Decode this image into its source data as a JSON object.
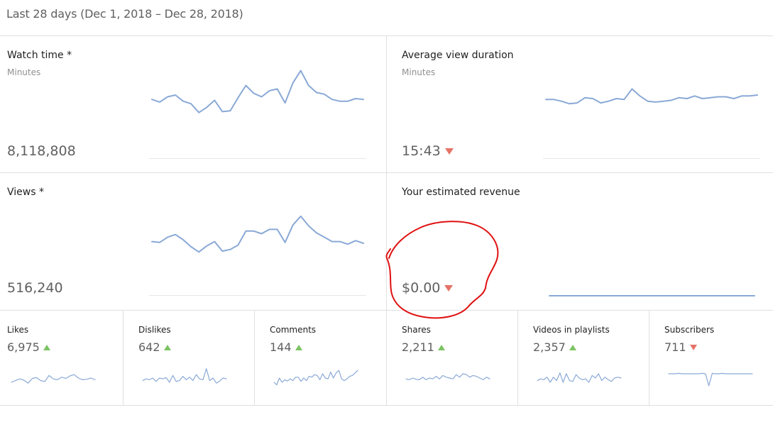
{
  "header": {
    "date_range": "Last 28 days (Dec 1, 2018 – Dec 28, 2018)"
  },
  "colors": {
    "spark_line": "#8aa9d6",
    "trend_up": "#7cc363",
    "trend_down": "#e57368",
    "annotation": "#e01010"
  },
  "cards": {
    "watch_time": {
      "title": "Watch time *",
      "subtitle": "Minutes",
      "value": "8,118,808",
      "trend": "none",
      "series": [
        60,
        57,
        63,
        65,
        58,
        55,
        45,
        51,
        59,
        46,
        47,
        62,
        76,
        67,
        63,
        70,
        72,
        56,
        79,
        93,
        76,
        68,
        66,
        60,
        58,
        58,
        61,
        60
      ]
    },
    "avg_view_duration": {
      "title": "Average view duration",
      "subtitle": "Minutes",
      "value": "15:43",
      "trend": "down",
      "series": [
        60,
        60,
        58,
        55,
        56,
        62,
        61,
        56,
        58,
        61,
        60,
        72,
        64,
        58,
        57,
        58,
        59,
        62,
        61,
        64,
        61,
        62,
        63,
        63,
        61,
        64,
        64,
        65
      ]
    },
    "views": {
      "title": "Views *",
      "value": "516,240",
      "trend": "none",
      "series": [
        54,
        53,
        59,
        62,
        56,
        48,
        42,
        49,
        54,
        43,
        45,
        50,
        66,
        66,
        63,
        68,
        68,
        53,
        73,
        83,
        72,
        64,
        59,
        54,
        54,
        51,
        55,
        52
      ]
    },
    "revenue": {
      "title": "Your estimated revenue",
      "value": "$0.00",
      "trend": "down",
      "series": [
        0,
        0,
        0,
        0,
        0,
        0,
        0,
        0,
        0,
        0,
        0,
        0,
        0,
        0,
        0,
        0,
        0,
        0,
        0,
        0,
        0,
        0,
        0,
        0,
        0,
        0,
        0,
        0
      ]
    }
  },
  "small_cards": [
    {
      "key": "likes",
      "title": "Likes",
      "value": "6,975",
      "trend": "up",
      "series": [
        40,
        44,
        48,
        45,
        38,
        49,
        51,
        44,
        42,
        56,
        48,
        46,
        52,
        49,
        55,
        58,
        50,
        46,
        47,
        50,
        46
      ]
    },
    {
      "key": "dislikes",
      "title": "Dislikes",
      "value": "642",
      "trend": "up",
      "series": [
        44,
        48,
        46,
        50,
        42,
        50,
        48,
        51,
        40,
        56,
        42,
        44,
        54,
        46,
        52,
        44,
        58,
        48,
        46,
        72,
        44,
        50,
        38,
        43,
        50,
        48
      ]
    },
    {
      "key": "comments",
      "title": "Comments",
      "value": "144",
      "trend": "up",
      "series": [
        40,
        34,
        50,
        40,
        46,
        43,
        48,
        44,
        52,
        52,
        42,
        50,
        44,
        54,
        52,
        58,
        56,
        46,
        60,
        50,
        48,
        64,
        50,
        62,
        68,
        48,
        44,
        48,
        54,
        56,
        62,
        68
      ]
    },
    {
      "key": "shares",
      "title": "Shares",
      "value": "2,211",
      "trend": "up",
      "series": [
        48,
        46,
        50,
        47,
        46,
        52,
        46,
        50,
        48,
        54,
        48,
        56,
        52,
        50,
        48,
        58,
        52,
        60,
        58,
        52,
        56,
        54,
        50,
        46,
        52,
        48
      ]
    },
    {
      "key": "videos_in_playlists",
      "title": "Videos in playlists",
      "value": "2,357",
      "trend": "up",
      "series": [
        44,
        48,
        46,
        52,
        40,
        52,
        44,
        62,
        40,
        60,
        44,
        42,
        58,
        50,
        46,
        48,
        40,
        56,
        50,
        60,
        44,
        52,
        46,
        42,
        50,
        52,
        50
      ]
    },
    {
      "key": "subscribers",
      "title": "Subscribers",
      "value": "711",
      "trend": "down",
      "series": [
        60,
        60,
        60,
        61,
        60,
        60,
        60,
        60,
        60,
        60,
        61,
        60,
        32,
        61,
        60,
        60,
        61,
        60,
        60,
        60,
        60,
        60,
        60,
        60,
        60,
        60
      ]
    }
  ]
}
